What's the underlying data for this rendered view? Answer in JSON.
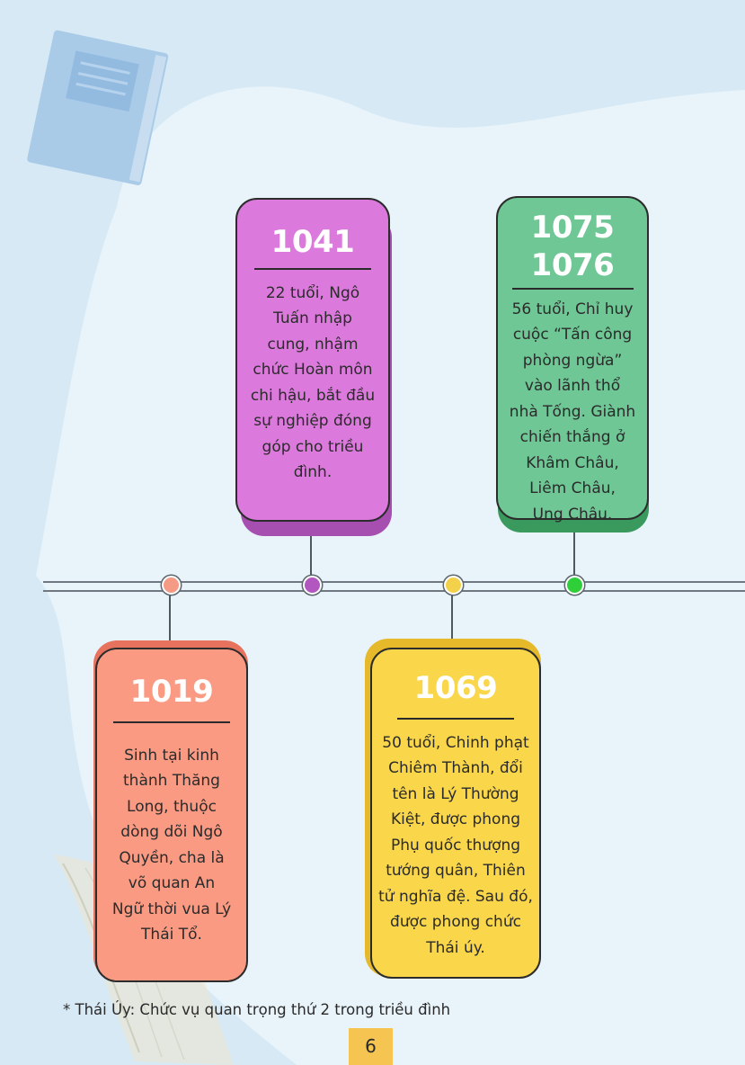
{
  "colors": {
    "background": "#d6e9f5",
    "blob": "#e8f3fa",
    "card_1019": "#fa9a82",
    "card_1041": "#dc79dc",
    "card_1069": "#f9d64a",
    "card_1075": "#6ec795",
    "dot_1019": "#f49a85",
    "dot_1041": "#b257bf",
    "dot_1069": "#f4d14b",
    "dot_1075": "#2fcf3a",
    "page_number_bg": "#f5c451"
  },
  "timeline": {
    "events": [
      {
        "id": "1019",
        "year_lines": [
          "1019"
        ],
        "text_lines": [
          "Sinh tại kinh",
          "thành Thăng",
          "Long, thuộc",
          "dòng dõi Ngô",
          "Quyền, cha là",
          "võ quan An",
          "Ngữ thời vua Lý",
          "Thái Tổ."
        ]
      },
      {
        "id": "1041",
        "year_lines": [
          "1041"
        ],
        "text_lines": [
          "22 tuổi, Ngô",
          "Tuấn nhập",
          "cung, nhậm",
          "chức Hoàn môn",
          "chi hậu, bắt đầu",
          "sự nghiệp đóng",
          "góp cho triều",
          "đình."
        ]
      },
      {
        "id": "1069",
        "year_lines": [
          "1069"
        ],
        "text_lines": [
          "50 tuổi, Chinh phạt",
          "Chiêm Thành, đổi",
          "tên là Lý Thường",
          "Kiệt, được phong",
          "Phụ quốc thượng",
          "tướng quân, Thiên",
          "tử nghĩa đệ. Sau đó,",
          "được phong chức",
          "Thái úy."
        ]
      },
      {
        "id": "1075",
        "year_lines": [
          "1075",
          "1076"
        ],
        "text_lines": [
          "56 tuổi, Chỉ huy",
          "cuộc “Tấn công",
          "phòng ngừa”",
          "vào lãnh thổ",
          "nhà Tống. Giành",
          "chiến thắng ở",
          "Khâm Châu,",
          "Liêm Châu,",
          "Ung Châu."
        ]
      }
    ]
  },
  "footnote": "* Thái Úy: Chức vụ quan trọng thứ 2 trong triều đình",
  "page_number": "6",
  "icons": [
    "book-icon",
    "open-book-icon"
  ]
}
